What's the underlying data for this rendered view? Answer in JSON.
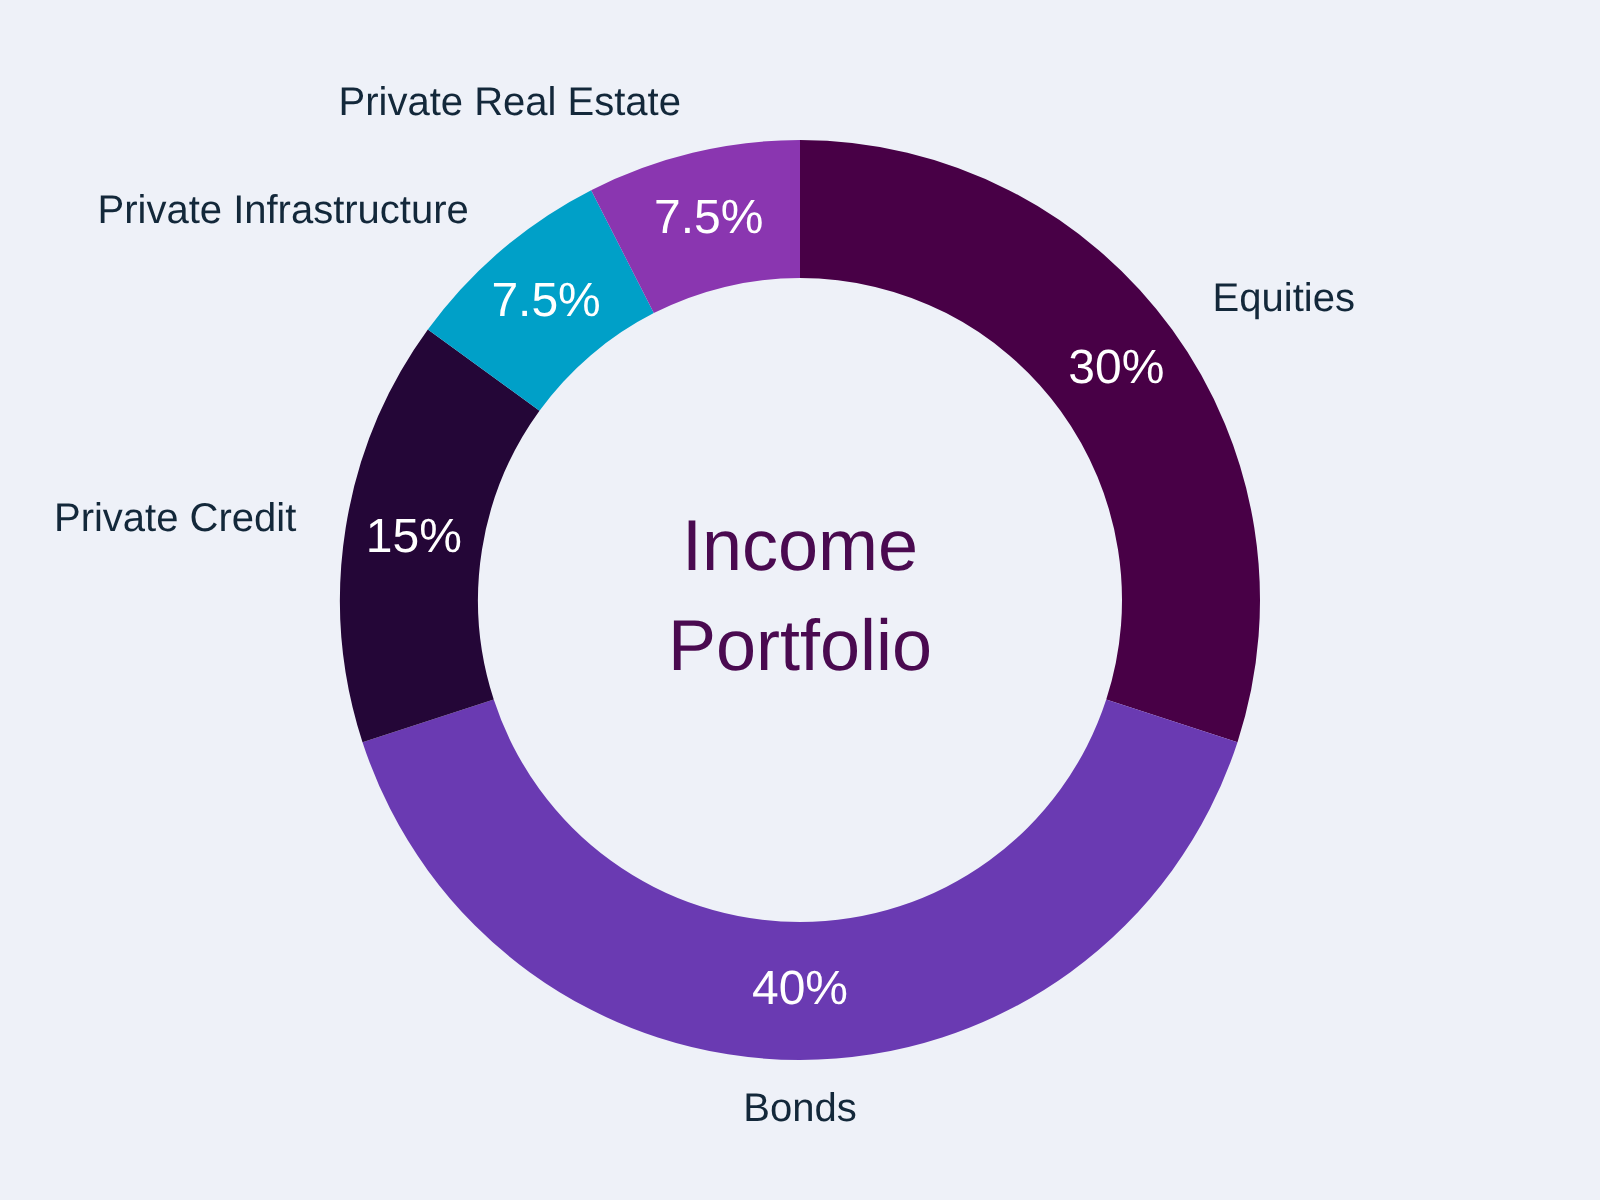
{
  "chart_data": {
    "type": "donut",
    "title": "Income Portfolio",
    "categories": [
      "Equities",
      "Bonds",
      "Private Credit",
      "Private Infrastructure",
      "Private Real Estate"
    ],
    "values": [
      30,
      40,
      15,
      7.5,
      7.5
    ],
    "colors": [
      "#480046",
      "#6a3ab2",
      "#240637",
      "#00a0c8",
      "#8a36b0"
    ],
    "value_labels": [
      "30%",
      "40%",
      "15%",
      "7.5%",
      "7.5%"
    ],
    "legend": false
  }
}
